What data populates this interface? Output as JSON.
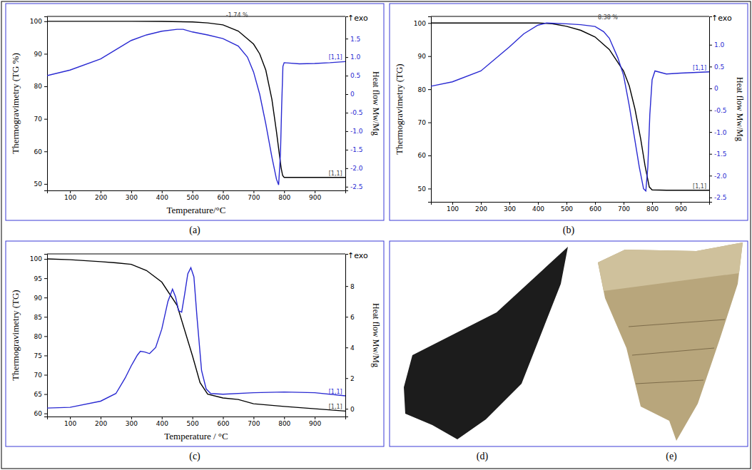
{
  "chart_data": [
    {
      "type": "line",
      "title": "(a)",
      "xlabel": "Temperature/°C",
      "ylabel": "Thermogravimetry (TG %)",
      "y2label": "Heat flow Mw/Mg",
      "xlim": [
        25,
        1000
      ],
      "xticks": [
        100,
        200,
        300,
        400,
        500,
        600,
        700,
        800,
        900
      ],
      "ylim": [
        48,
        101.5
      ],
      "yticks": [
        50,
        60,
        70,
        80,
        90,
        100
      ],
      "y2lim": [
        -2.6,
        2.1
      ],
      "y2ticks": [
        1.5,
        {
          "value": 1,
          "label": "1.0"
        },
        0.5,
        0,
        -0.5,
        {
          "value": -1,
          "label": "-1.0"
        },
        -1.5,
        {
          "value": -2,
          "label": "-2.0"
        },
        -2.5
      ],
      "series": [
        {
          "color": "#000000",
          "x": [
            25,
            100,
            200,
            300,
            400,
            500,
            550,
            600,
            650,
            700,
            720,
            740,
            760,
            775,
            790,
            795,
            800,
            850,
            900,
            1000
          ],
          "values": [
            100,
            100,
            100,
            100,
            99.95,
            99.8,
            99.5,
            98.9,
            97,
            93,
            90,
            85,
            76,
            66,
            55,
            52.6,
            52,
            52,
            52,
            52
          ]
        },
        {
          "color": "#2a2ad2",
          "axis": "y2",
          "x": [
            25,
            100,
            200,
            250,
            300,
            350,
            400,
            450,
            470,
            500,
            550,
            600,
            650,
            680,
            700,
            720,
            740,
            760,
            775,
            782,
            788,
            792,
            796,
            800,
            850,
            900,
            950,
            1000
          ],
          "values": [
            0.5,
            0.65,
            0.95,
            1.2,
            1.45,
            1.6,
            1.7,
            1.75,
            1.75,
            1.68,
            1.6,
            1.5,
            1.3,
            1.0,
            0.6,
            0.0,
            -0.8,
            -1.7,
            -2.3,
            -2.45,
            -1.6,
            -0.3,
            0.75,
            0.85,
            0.82,
            0.83,
            0.85,
            0.88
          ]
        }
      ],
      "annotations": [
        {
          "text": "↑exo"
        },
        {
          "text": "-1.74 %",
          "x": 610,
          "y": 100.6
        },
        {
          "text": "[1,1]",
          "x": 990,
          "y": 52
        },
        {
          "text": "[1,1]",
          "x": 990,
          "y": 0.88,
          "axis": "y2"
        }
      ]
    },
    {
      "type": "line",
      "title": "(b)",
      "ylabel": "Thermogravimetry (TG)",
      "y2label": "Heat flow Mw/Mg",
      "xlim": [
        25,
        1000
      ],
      "xticks": [
        100,
        200,
        300,
        400,
        500,
        600,
        700,
        800,
        900
      ],
      "ylim": [
        46,
        102
      ],
      "yticks": [
        50,
        60,
        70,
        80,
        90,
        100
      ],
      "y2lim": [
        -2.6,
        1.65
      ],
      "y2ticks": [
        {
          "value": 1,
          "label": "1.0"
        },
        0.5,
        0,
        -0.5,
        {
          "value": -1,
          "label": "-1.0"
        },
        -1.5,
        {
          "value": -2,
          "label": "-2.0"
        },
        -2.5
      ],
      "series": [
        {
          "color": "#000000",
          "x": [
            25,
            100,
            200,
            300,
            400,
            450,
            500,
            550,
            600,
            650,
            700,
            720,
            740,
            760,
            775,
            790,
            800,
            850,
            1000
          ],
          "values": [
            100,
            100,
            100,
            100,
            100,
            99.8,
            99,
            97.8,
            95.8,
            92,
            85.5,
            81,
            74,
            65,
            57,
            50.5,
            49.6,
            49.5,
            49.5
          ]
        },
        {
          "color": "#2a2ad2",
          "axis": "y2",
          "x": [
            25,
            100,
            200,
            300,
            350,
            400,
            430,
            500,
            550,
            600,
            630,
            650,
            680,
            700,
            720,
            740,
            755,
            770,
            778,
            785,
            792,
            800,
            810,
            850,
            900,
            1000
          ],
          "values": [
            0.05,
            0.15,
            0.4,
            0.95,
            1.25,
            1.45,
            1.5,
            1.48,
            1.46,
            1.42,
            1.3,
            1.15,
            0.7,
            0.3,
            -0.4,
            -1.2,
            -1.8,
            -2.3,
            -2.35,
            -1.8,
            -0.6,
            0.2,
            0.4,
            0.33,
            0.35,
            0.38
          ]
        }
      ],
      "annotations": [
        {
          "text": "↑exo"
        },
        {
          "text": "8.38 %",
          "x": 610,
          "y": 100.6
        },
        {
          "text": "[1,1]",
          "x": 990,
          "y": 49.5
        },
        {
          "text": "[1,1]",
          "x": 990,
          "y": 0.38,
          "axis": "y2"
        }
      ]
    },
    {
      "type": "line",
      "title": "(c)",
      "xlabel": "Temperature / °C",
      "ylabel": "Thermogravimetry (TG)",
      "y2label": "Heat flow Mw/Mg",
      "xlim": [
        25,
        1000
      ],
      "xticks": [
        100,
        200,
        300,
        400,
        500,
        600,
        700,
        800,
        900
      ],
      "ylim": [
        59.2,
        101.3
      ],
      "yticks": [
        60,
        65,
        70,
        75,
        80,
        85,
        90,
        95,
        100
      ],
      "y2lim": [
        -0.5,
        10.1
      ],
      "y2ticks": [
        0,
        2,
        4,
        6,
        8
      ],
      "series": [
        {
          "color": "#000000",
          "x": [
            25,
            100,
            200,
            250,
            300,
            350,
            400,
            450,
            500,
            525,
            550,
            600,
            650,
            700,
            800,
            900,
            1000
          ],
          "values": [
            100,
            99.8,
            99.3,
            99,
            98.6,
            97,
            94,
            88,
            75,
            68,
            65,
            64,
            63.6,
            62.5,
            61.8,
            61.2,
            60.6
          ]
        },
        {
          "color": "#2a2ad2",
          "axis": "y2",
          "x": [
            25,
            100,
            200,
            250,
            280,
            300,
            320,
            330,
            345,
            360,
            380,
            400,
            420,
            435,
            445,
            455,
            465,
            475,
            485,
            495,
            505,
            515,
            530,
            545,
            560,
            600,
            700,
            800,
            900,
            1000
          ],
          "values": [
            0.05,
            0.1,
            0.5,
            1.0,
            2.0,
            2.8,
            3.5,
            3.75,
            3.7,
            3.6,
            4.0,
            5.2,
            7.0,
            7.8,
            7.3,
            6.4,
            6.3,
            7.5,
            8.8,
            9.2,
            8.6,
            6.0,
            2.5,
            1.3,
            1.0,
            0.95,
            1.05,
            1.1,
            1.05,
            0.85
          ]
        }
      ],
      "annotations": [
        {
          "text": "↑exo"
        },
        {
          "text": "[1,1]",
          "x": 990,
          "y": 60.6
        },
        {
          "text": "[1,1]",
          "x": 990,
          "y": 0.85,
          "axis": "y2"
        }
      ]
    }
  ],
  "images": [
    {
      "caption": "(d)"
    },
    {
      "caption": "(e)"
    }
  ]
}
